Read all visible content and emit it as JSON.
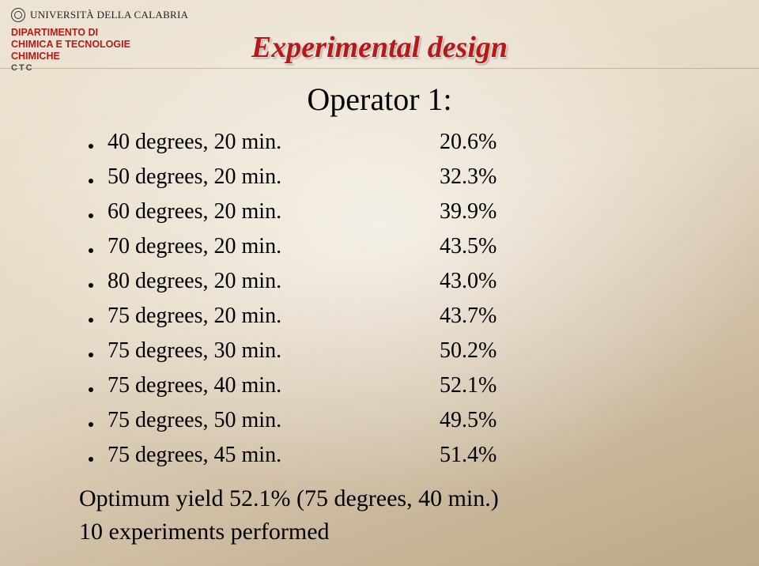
{
  "header": {
    "university": "UNIVERSITÀ DELLA CALABRIA",
    "department_line1": "DIPARTIMENTO DI",
    "department_line2": "CHIMICA E TECNOLOGIE",
    "department_line3": "CHIMICHE",
    "ctc": "CTC"
  },
  "title": "Experimental design",
  "operator_heading": "Operator 1:",
  "rows": [
    {
      "condition": "40 degrees, 20 min.",
      "yield": "20.6%"
    },
    {
      "condition": "50 degrees, 20 min.",
      "yield": "32.3%"
    },
    {
      "condition": "60 degrees, 20 min.",
      "yield": "39.9%"
    },
    {
      "condition": "70 degrees, 20 min.",
      "yield": "43.5%"
    },
    {
      "condition": "80 degrees, 20 min.",
      "yield": "43.0%"
    },
    {
      "condition": "75 degrees, 20 min.",
      "yield": "43.7%"
    },
    {
      "condition": "75 degrees, 30 min.",
      "yield": "50.2%"
    },
    {
      "condition": "75 degrees, 40 min.",
      "yield": "52.1%"
    },
    {
      "condition": "75 degrees, 50 min.",
      "yield": "49.5%"
    },
    {
      "condition": "75 degrees, 45 min.",
      "yield": "51.4%"
    }
  ],
  "summary": {
    "line1": "Optimum yield 52.1% (75 degrees, 40 min.)",
    "line2": "10 experiments performed"
  },
  "colors": {
    "accent_red": "#b31b1b",
    "text": "#000000",
    "ctc": "#444444"
  },
  "fonts": {
    "body_family": "Times New Roman",
    "title_fontsize_pt": 29,
    "operator_fontsize_pt": 30,
    "row_fontsize_pt": 21,
    "summary_fontsize_pt": 23,
    "title_style": "italic bold"
  }
}
